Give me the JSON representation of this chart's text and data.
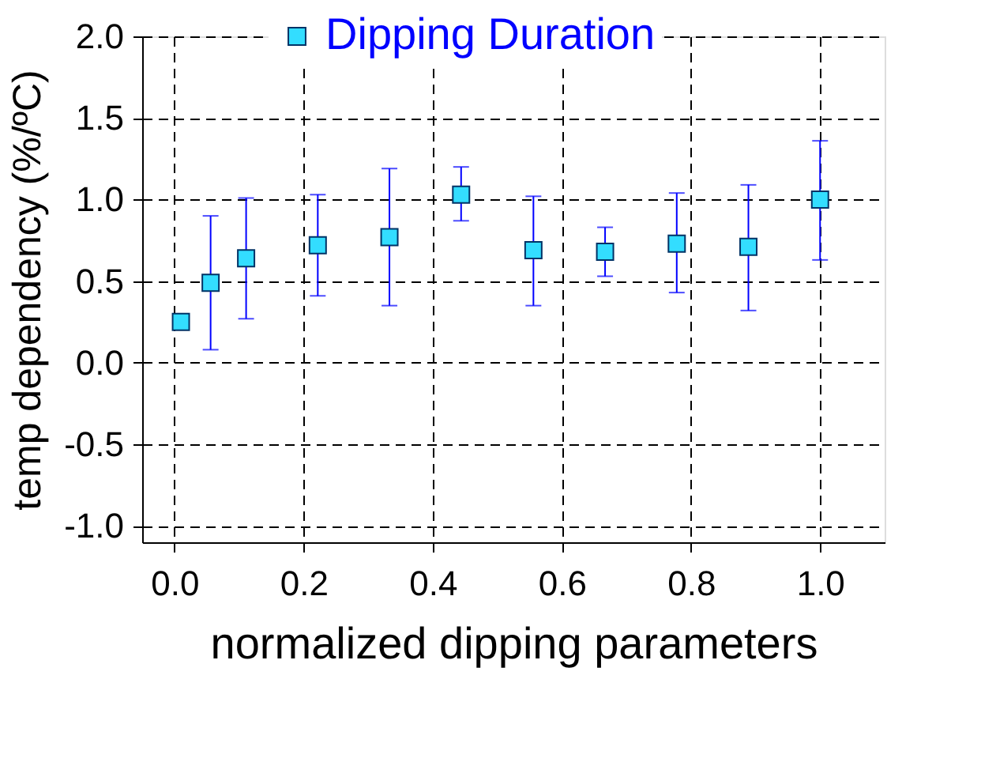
{
  "chart_data": {
    "type": "scatter",
    "xlabel": "normalized dipping parameters",
    "ylabel": "temp dependency (%/ºC)",
    "x": [
      0.01,
      0.056,
      0.111,
      0.222,
      0.333,
      0.444,
      0.556,
      0.667,
      0.778,
      0.889,
      1.0
    ],
    "series": [
      {
        "name": "Dipping Duration",
        "color": "#33ddff",
        "values": [
          0.25,
          0.49,
          0.64,
          0.72,
          0.77,
          1.03,
          0.69,
          0.68,
          0.73,
          0.71,
          1.0
        ],
        "errors": [
          null,
          [
            0.08,
            0.9
          ],
          [
            0.27,
            1.01
          ],
          [
            0.41,
            1.03
          ],
          [
            0.35,
            1.19
          ],
          [
            0.87,
            1.2
          ],
          [
            0.35,
            1.02
          ],
          [
            0.53,
            0.83
          ],
          [
            0.43,
            1.04
          ],
          [
            0.32,
            1.09
          ],
          [
            0.63,
            1.36
          ]
        ]
      }
    ],
    "xlim": [
      -0.05,
      1.1
    ],
    "ylim": [
      -1.1,
      2.0
    ],
    "xticks": [
      {
        "value": 0,
        "label": "0.0"
      },
      {
        "value": 0.2,
        "label": "0.2"
      },
      {
        "value": 0.4,
        "label": "0.4"
      },
      {
        "value": 0.6,
        "label": "0.6"
      },
      {
        "value": 0.8,
        "label": "0.8"
      },
      {
        "value": 1.0,
        "label": "1.0"
      }
    ],
    "yticks": [
      {
        "value": -1,
        "label": "-1.0"
      },
      {
        "value": -0.5,
        "label": "-0.5"
      },
      {
        "value": 0,
        "label": "0.0"
      },
      {
        "value": 0.5,
        "label": "0.5"
      },
      {
        "value": 1.0,
        "label": "1.0"
      },
      {
        "value": 1.5,
        "label": "1.5"
      },
      {
        "value": 2.0,
        "label": "2.0"
      }
    ],
    "grid": true,
    "legend": "top",
    "marker": "square"
  }
}
